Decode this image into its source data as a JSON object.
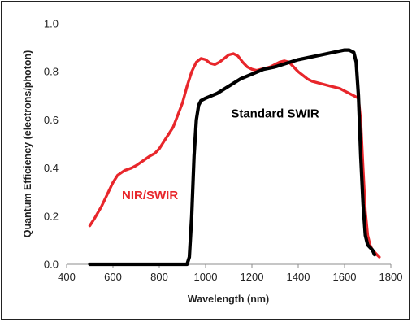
{
  "chart_data": {
    "type": "line",
    "title": "",
    "xlabel": "Wavelength (nm)",
    "ylabel": "Quantum Efficiency (electrons/photon)",
    "xlim": [
      400,
      1800
    ],
    "ylim": [
      0.0,
      1.0
    ],
    "xticks": [
      "400",
      "600",
      "800",
      "1000",
      "1200",
      "1400",
      "1600",
      "1800"
    ],
    "yticks": [
      "0.0",
      "0.2",
      "0.4",
      "0.6",
      "0.8",
      "1.0"
    ],
    "grid": false,
    "legend": "none",
    "series": [
      {
        "name": "NIR/SWIR",
        "color": "#e8262b",
        "x": [
          500,
          520,
          550,
          580,
          600,
          620,
          650,
          680,
          700,
          730,
          760,
          780,
          800,
          820,
          840,
          860,
          880,
          900,
          920,
          940,
          960,
          980,
          1000,
          1020,
          1040,
          1060,
          1080,
          1100,
          1120,
          1140,
          1160,
          1180,
          1200,
          1220,
          1240,
          1260,
          1280,
          1300,
          1320,
          1340,
          1360,
          1380,
          1400,
          1420,
          1440,
          1460,
          1480,
          1500,
          1520,
          1540,
          1560,
          1580,
          1600,
          1620,
          1640,
          1660,
          1670,
          1680,
          1690,
          1700,
          1710,
          1720,
          1730,
          1740,
          1750
        ],
        "y": [
          0.16,
          0.19,
          0.24,
          0.3,
          0.34,
          0.37,
          0.39,
          0.4,
          0.41,
          0.43,
          0.45,
          0.46,
          0.48,
          0.51,
          0.54,
          0.57,
          0.62,
          0.67,
          0.74,
          0.8,
          0.84,
          0.855,
          0.85,
          0.835,
          0.83,
          0.84,
          0.855,
          0.87,
          0.875,
          0.865,
          0.84,
          0.82,
          0.81,
          0.805,
          0.81,
          0.815,
          0.82,
          0.83,
          0.84,
          0.845,
          0.84,
          0.82,
          0.8,
          0.785,
          0.77,
          0.76,
          0.755,
          0.75,
          0.745,
          0.74,
          0.735,
          0.73,
          0.72,
          0.71,
          0.7,
          0.69,
          0.6,
          0.4,
          0.22,
          0.12,
          0.08,
          0.06,
          0.05,
          0.04,
          0.03
        ]
      },
      {
        "name": "Standard SWIR",
        "color": "#000000",
        "x": [
          500,
          600,
          700,
          800,
          900,
          920,
          930,
          940,
          950,
          960,
          970,
          980,
          1000,
          1050,
          1100,
          1150,
          1200,
          1250,
          1300,
          1350,
          1400,
          1450,
          1500,
          1550,
          1600,
          1620,
          1640,
          1650,
          1660,
          1670,
          1680,
          1690,
          1700,
          1710,
          1720,
          1730
        ],
        "y": [
          0.0,
          0.0,
          0.0,
          0.0,
          0.0,
          0.0,
          0.03,
          0.2,
          0.45,
          0.6,
          0.66,
          0.68,
          0.69,
          0.71,
          0.74,
          0.77,
          0.79,
          0.81,
          0.82,
          0.835,
          0.85,
          0.86,
          0.87,
          0.88,
          0.89,
          0.89,
          0.88,
          0.84,
          0.7,
          0.45,
          0.25,
          0.12,
          0.08,
          0.07,
          0.06,
          0.04
        ]
      }
    ],
    "annotations": [
      {
        "text": "NIR/SWIR",
        "color": "#e8262b",
        "x": 760,
        "y": 0.27
      },
      {
        "text": "Standard SWIR",
        "color": "#000000",
        "x": 1300,
        "y": 0.61
      }
    ]
  }
}
